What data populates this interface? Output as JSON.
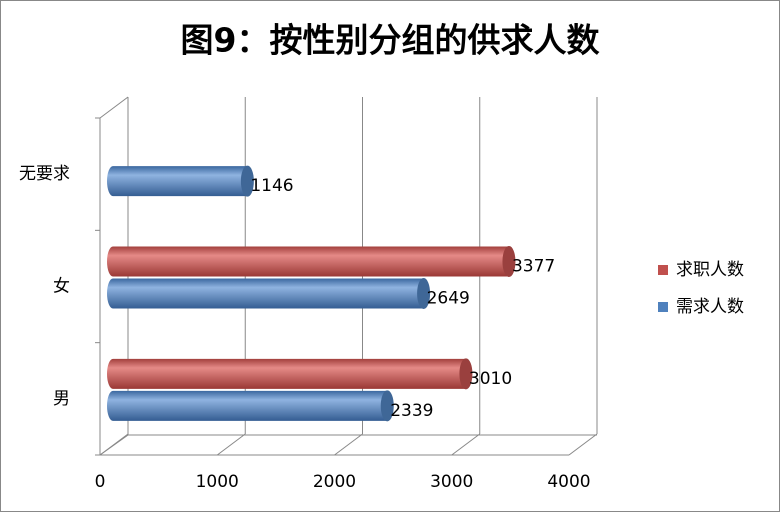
{
  "chart_data": {
    "type": "bar",
    "orientation": "horizontal",
    "title": "图9：按性别分组的供求人数",
    "categories": [
      "男",
      "女",
      "无要求"
    ],
    "series": [
      {
        "name": "求职人数",
        "color": "#c0504d",
        "values": [
          3010,
          3377,
          null
        ]
      },
      {
        "name": "需求人数",
        "color": "#4f81bd",
        "values": [
          2339,
          2649,
          1146
        ]
      }
    ],
    "xlim": [
      0,
      4000
    ],
    "xticks": [
      0,
      1000,
      2000,
      3000,
      4000
    ],
    "grid": true,
    "legend": "right"
  }
}
